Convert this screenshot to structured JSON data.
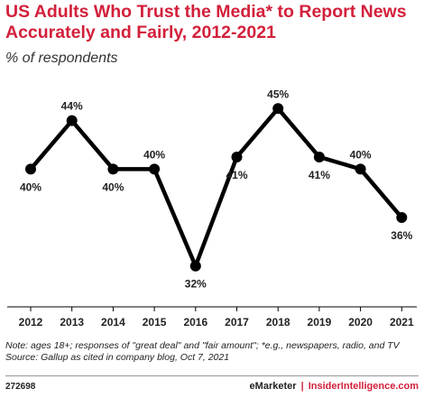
{
  "header": {
    "title": "US Adults Who Trust the Media* to Report News Accurately and Fairly, 2012-2021",
    "subtitle": "% of respondents"
  },
  "chart_data": {
    "type": "line",
    "categories": [
      "2012",
      "2013",
      "2014",
      "2015",
      "2016",
      "2017",
      "2018",
      "2019",
      "2020",
      "2021"
    ],
    "values": [
      40,
      44,
      40,
      40,
      32,
      41,
      45,
      41,
      40,
      36
    ],
    "data_labels": [
      "40%",
      "44%",
      "40%",
      "40%",
      "32%",
      "41%",
      "45%",
      "41%",
      "40%",
      "36%"
    ],
    "label_positions": [
      "below",
      "above",
      "below",
      "above",
      "below",
      "below",
      "above",
      "below",
      "above",
      "below"
    ],
    "ylim": [
      29,
      48
    ],
    "xlabel": "",
    "ylabel": "",
    "line_color": "#000000"
  },
  "footer": {
    "note": "Note: ages 18+; responses of \"great deal\" and \"fair amount\"; *e.g., newspapers, radio, and TV",
    "source": "Source: Gallup as cited in company blog, Oct 7, 2021",
    "chart_id": "272698",
    "brand_left": "eMarketer",
    "brand_sep": "|",
    "brand_right": "InsiderIntelligence.com"
  }
}
